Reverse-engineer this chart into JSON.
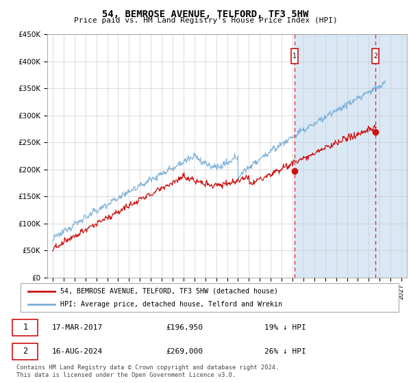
{
  "title": "54, BEMROSE AVENUE, TELFORD, TF3 5HW",
  "subtitle": "Price paid vs. HM Land Registry's House Price Index (HPI)",
  "yticks": [
    0,
    50000,
    100000,
    150000,
    200000,
    250000,
    300000,
    350000,
    400000,
    450000
  ],
  "ytick_labels": [
    "£0",
    "£50K",
    "£100K",
    "£150K",
    "£200K",
    "£250K",
    "£300K",
    "£350K",
    "£400K",
    "£450K"
  ],
  "hpi_color": "#7aaed6",
  "price_color": "#cc1111",
  "t1_x": 2017.2,
  "t2_x": 2024.62,
  "t1_price": 196950,
  "t2_price": 269000,
  "legend1": "54, BEMROSE AVENUE, TELFORD, TF3 5HW (detached house)",
  "legend2": "HPI: Average price, detached house, Telford and Wrekin",
  "footer": "Contains HM Land Registry data © Crown copyright and database right 2024.\nThis data is licensed under the Open Government Licence v3.0.",
  "xmin": 1995,
  "xmax": 2027,
  "xticks": [
    1995,
    1996,
    1997,
    1998,
    1999,
    2000,
    2001,
    2002,
    2003,
    2004,
    2005,
    2006,
    2007,
    2008,
    2009,
    2010,
    2011,
    2012,
    2013,
    2014,
    2015,
    2016,
    2017,
    2018,
    2019,
    2020,
    2021,
    2022,
    2023,
    2024,
    2025,
    2026,
    2027
  ]
}
